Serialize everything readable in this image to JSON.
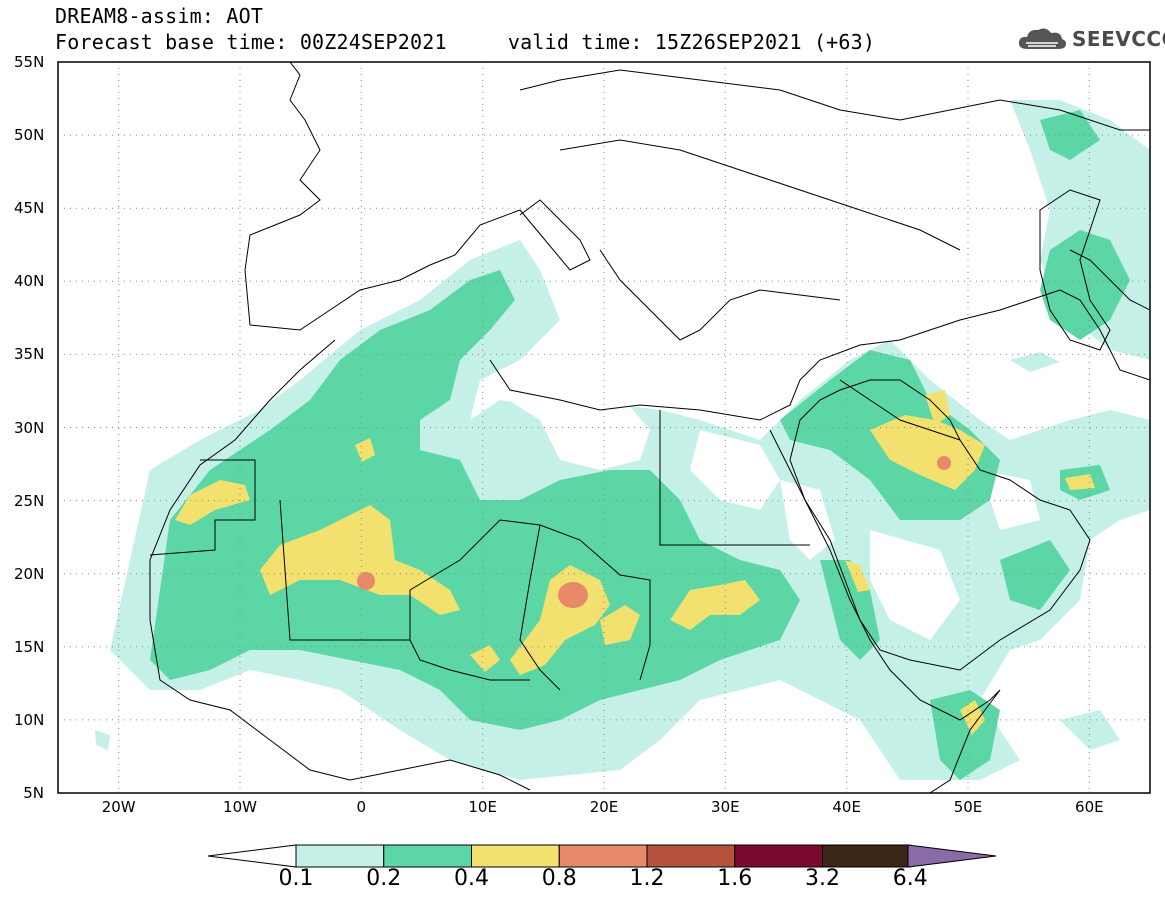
{
  "header": {
    "title_line1": "DREAM8-assim: AOT",
    "title_line2": "Forecast base time: 00Z24SEP2021     valid time: 15Z26SEP2021 (+63)",
    "logo_text": "SEEVCCC"
  },
  "map": {
    "projection": "lat-lon",
    "lon_range": [
      -25,
      65
    ],
    "lat_range": [
      5,
      55
    ],
    "grid": true,
    "lat_ticks": [
      "55N",
      "50N",
      "45N",
      "40N",
      "35N",
      "30N",
      "25N",
      "20N",
      "15N",
      "10N",
      "5N"
    ],
    "lon_ticks": [
      "20W",
      "10W",
      "0",
      "10E",
      "20E",
      "30E",
      "40E",
      "50E",
      "60E"
    ]
  },
  "colorbar": {
    "levels": [
      "0.1",
      "0.2",
      "0.4",
      "0.8",
      "1.2",
      "1.6",
      "3.2",
      "6.4"
    ],
    "colors": [
      "#ffffff",
      "#c4f0e8",
      "#5dd6a6",
      "#f2e16e",
      "#e8896a",
      "#b4523e",
      "#7d0a2e",
      "#3b2616",
      "#8b6aa8"
    ]
  }
}
